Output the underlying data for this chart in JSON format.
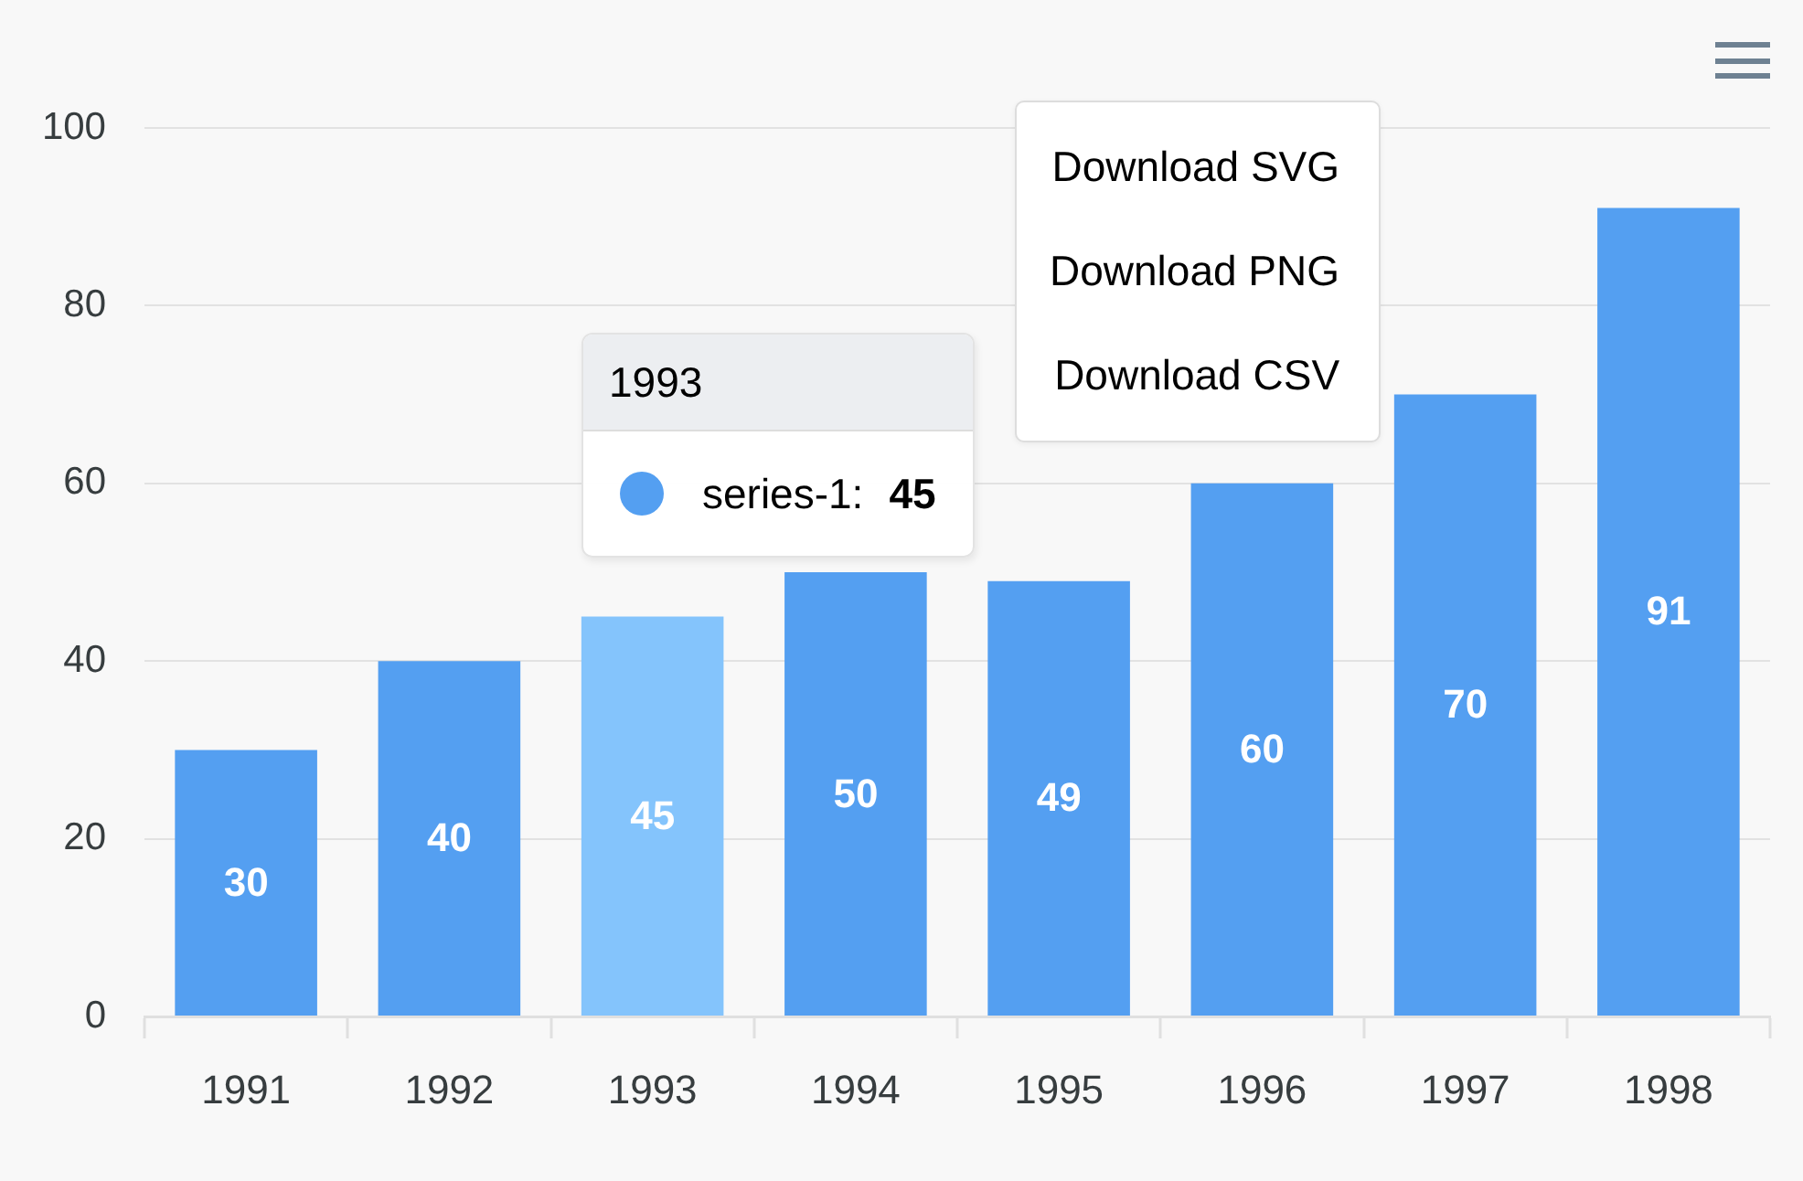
{
  "chart_data": {
    "type": "bar",
    "categories": [
      "1991",
      "1992",
      "1993",
      "1994",
      "1995",
      "1996",
      "1997",
      "1998"
    ],
    "series": [
      {
        "name": "series-1:",
        "color": "#549ff1",
        "colors": [
          "#549ff1",
          "#549ff1",
          "#84c4fc",
          "#549ff1",
          "#549ff1",
          "#549ff1",
          "#549ff1",
          "#549ff1"
        ],
        "values": [
          30,
          40,
          45,
          50,
          49,
          60,
          70,
          91
        ]
      }
    ],
    "ylim": [
      0,
      100
    ],
    "yticks": [
      0,
      20,
      40,
      60,
      80,
      100
    ],
    "grid": "y",
    "data_labels": true,
    "annotations": [
      {
        "text": "1993"
      },
      {
        "text": "45"
      },
      "Download SVG",
      "Download PNG",
      "Download CSV"
    ]
  }
}
